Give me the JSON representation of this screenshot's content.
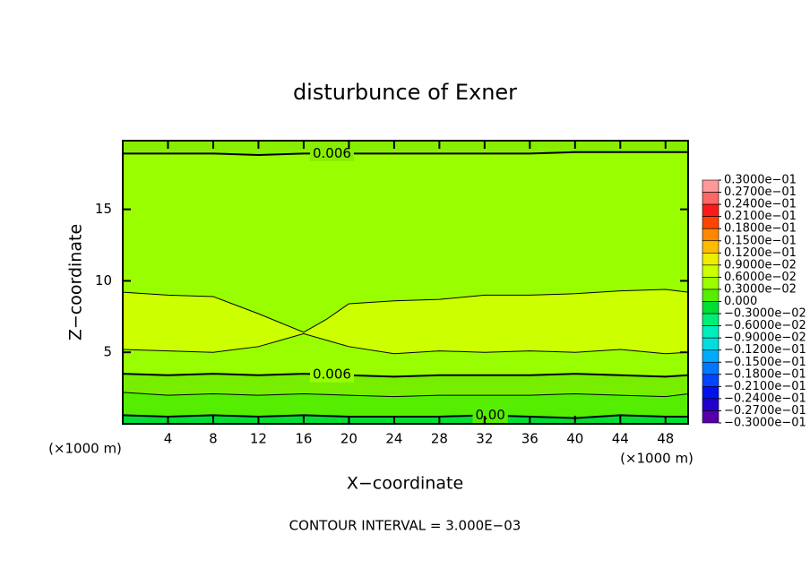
{
  "chart_data": {
    "type": "contour",
    "title": "disturbunce of Exner",
    "x_label": "X−coordinate",
    "y_label": "Z−coordinate",
    "x_unit_left": "(×1000 m)",
    "x_unit_right": "(×1000 m)",
    "footer": "CONTOUR INTERVAL = 3.000E−03",
    "xlim": [
      0,
      50
    ],
    "ylim": [
      0,
      19.8
    ],
    "xticks": [
      4,
      8,
      12,
      16,
      20,
      24,
      28,
      32,
      36,
      40,
      44,
      48
    ],
    "yticks": [
      5,
      10,
      15
    ],
    "base_fill": "#00dd33",
    "contours": [
      {
        "label": "0.00",
        "fill_above": "#55ee00",
        "x": [
          0,
          4,
          8,
          12,
          16,
          20,
          24,
          28,
          32,
          36,
          40,
          44,
          48,
          50
        ],
        "z": [
          0.6,
          0.5,
          0.6,
          0.5,
          0.6,
          0.5,
          0.5,
          0.5,
          0.6,
          0.5,
          0.4,
          0.6,
          0.5,
          0.5
        ]
      },
      {
        "fill_above": "#77ee00",
        "x": [
          0,
          4,
          8,
          12,
          16,
          20,
          24,
          28,
          32,
          36,
          40,
          44,
          48,
          50
        ],
        "z": [
          2.2,
          2.0,
          2.1,
          2.0,
          2.1,
          2.0,
          1.9,
          2.0,
          2.0,
          2.0,
          2.1,
          2.0,
          1.9,
          2.1
        ]
      },
      {
        "label": "0.006",
        "fill_above": "#99ff00",
        "x": [
          0,
          4,
          8,
          12,
          16,
          20,
          24,
          28,
          32,
          36,
          40,
          44,
          48,
          50
        ],
        "z": [
          3.5,
          3.4,
          3.5,
          3.4,
          3.5,
          3.4,
          3.3,
          3.4,
          3.4,
          3.4,
          3.5,
          3.4,
          3.3,
          3.4
        ]
      },
      {
        "fill_above": "#ccff00",
        "x": [
          0,
          4,
          8,
          12,
          16,
          20,
          24,
          28,
          32,
          36,
          40,
          44,
          48,
          50
        ],
        "z": [
          5.2,
          5.1,
          5.0,
          5.4,
          6.3,
          5.4,
          4.9,
          5.1,
          5.0,
          5.1,
          5.0,
          5.2,
          4.9,
          5.0
        ]
      },
      {
        "fill_above": "#99ff00",
        "x": [
          0,
          4,
          8,
          12,
          16,
          18,
          20,
          24,
          28,
          32,
          36,
          40,
          44,
          48,
          50
        ],
        "z": [
          9.2,
          9.0,
          8.9,
          7.7,
          6.4,
          7.3,
          8.4,
          8.6,
          8.7,
          9.0,
          9.0,
          9.1,
          9.3,
          9.4,
          9.2
        ]
      },
      {
        "label": "0.006",
        "fill_above": "#88ee00",
        "x": [
          0,
          4,
          8,
          12,
          16,
          20,
          24,
          28,
          32,
          36,
          40,
          44,
          48,
          50
        ],
        "z": [
          18.9,
          18.9,
          18.9,
          18.8,
          18.9,
          18.9,
          18.9,
          18.9,
          18.9,
          18.9,
          19.0,
          19.0,
          19.0,
          19.0
        ]
      }
    ],
    "colorbar": {
      "ticks": [
        {
          "value": 0.03,
          "label": "0.3000e−01"
        },
        {
          "value": 0.027,
          "label": "0.2700e−01"
        },
        {
          "value": 0.024,
          "label": "0.2400e−01"
        },
        {
          "value": 0.021,
          "label": "0.2100e−01"
        },
        {
          "value": 0.018,
          "label": "0.1800e−01"
        },
        {
          "value": 0.015,
          "label": "0.1500e−01"
        },
        {
          "value": 0.012,
          "label": "0.1200e−01"
        },
        {
          "value": 0.009,
          "label": "0.9000e−02"
        },
        {
          "value": 0.006,
          "label": "0.6000e−02"
        },
        {
          "value": 0.003,
          "label": "0.3000e−02"
        },
        {
          "value": 0,
          "label": "0.000"
        },
        {
          "value": -0.003,
          "label": "−0.3000e−02"
        },
        {
          "value": -0.006,
          "label": "−0.6000e−02"
        },
        {
          "value": -0.009,
          "label": "−0.9000e−02"
        },
        {
          "value": -0.012,
          "label": "−0.1200e−01"
        },
        {
          "value": -0.015,
          "label": "−0.1500e−01"
        },
        {
          "value": -0.018,
          "label": "−0.1800e−01"
        },
        {
          "value": -0.021,
          "label": "−0.2100e−01"
        },
        {
          "value": -0.024,
          "label": "−0.2400e−01"
        },
        {
          "value": -0.027,
          "label": "−0.2700e−01"
        },
        {
          "value": -0.03,
          "label": "−0.3000e−01"
        }
      ],
      "colors": [
        "#ff9999",
        "#ff6666",
        "#ff1a1a",
        "#ff4400",
        "#ff8800",
        "#ffbb00",
        "#eeee00",
        "#ccff00",
        "#99ff00",
        "#55ee00",
        "#00dd33",
        "#00ee77",
        "#00eebb",
        "#00dddd",
        "#00aaff",
        "#0077ff",
        "#0044ff",
        "#0011ee",
        "#2200cc",
        "#5500aa"
      ]
    }
  }
}
